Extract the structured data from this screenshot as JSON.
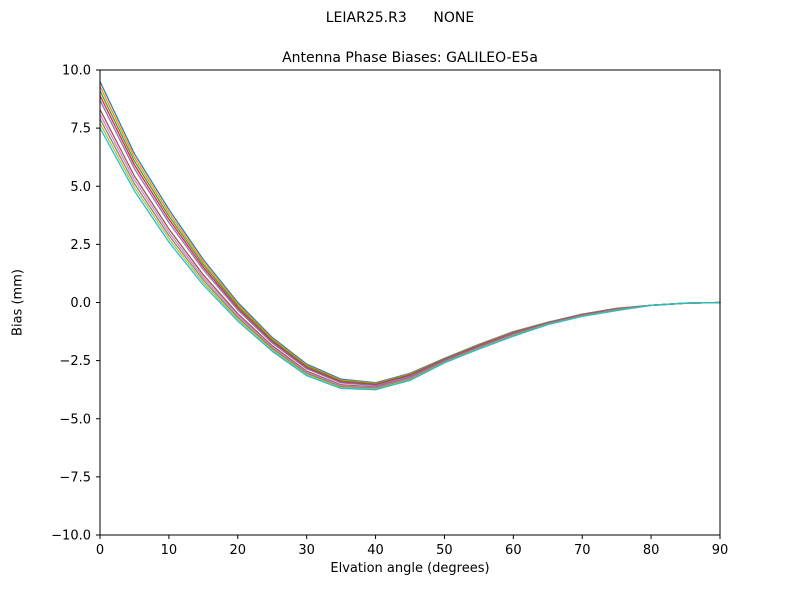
{
  "figure": {
    "suptitle": "LEIAR25.R3      NONE",
    "title": "Antenna Phase Biases: GALILEO-E5a",
    "xlabel": "Elvation angle (degrees)",
    "ylabel": "Bias (mm)",
    "background_color": "#ffffff",
    "axis_color": "#000000"
  },
  "chart_data": {
    "type": "line",
    "suptitle": "LEIAR25.R3      NONE",
    "title": "Antenna Phase Biases: GALILEO-E5a",
    "xlabel": "Elvation angle (degrees)",
    "ylabel": "Bias (mm)",
    "xlim": [
      0,
      90
    ],
    "ylim": [
      -10.0,
      10.0
    ],
    "xticks": [
      0,
      10,
      20,
      30,
      40,
      50,
      60,
      70,
      80,
      90
    ],
    "yticks": [
      -10.0,
      -7.5,
      -5.0,
      -2.5,
      0.0,
      2.5,
      5.0,
      7.5,
      10.0
    ],
    "grid": false,
    "legend": "none",
    "x": [
      0,
      5,
      10,
      15,
      20,
      25,
      30,
      35,
      40,
      45,
      50,
      55,
      60,
      65,
      70,
      75,
      80,
      85,
      90
    ],
    "series": [
      {
        "name": "series-01",
        "color": "#1f77b4",
        "values": [
          9.5,
          6.4,
          4.0,
          1.85,
          0.0,
          -1.5,
          -2.65,
          -3.3,
          -3.45,
          -3.05,
          -2.4,
          -1.8,
          -1.25,
          -0.85,
          -0.5,
          -0.25,
          -0.12,
          -0.03,
          0.0
        ]
      },
      {
        "name": "series-02",
        "color": "#ff7f0e",
        "values": [
          9.3,
          6.24,
          3.86,
          1.74,
          -0.08,
          -1.56,
          -2.7,
          -3.34,
          -3.48,
          -3.08,
          -2.42,
          -1.82,
          -1.27,
          -0.86,
          -0.51,
          -0.26,
          -0.12,
          -0.03,
          0.0
        ]
      },
      {
        "name": "series-03",
        "color": "#2ca02c",
        "values": [
          9.1,
          6.08,
          3.72,
          1.63,
          -0.16,
          -1.62,
          -2.75,
          -3.38,
          -3.51,
          -3.11,
          -2.44,
          -1.84,
          -1.29,
          -0.87,
          -0.52,
          -0.27,
          -0.12,
          -0.03,
          0.0
        ]
      },
      {
        "name": "series-04",
        "color": "#d62728",
        "values": [
          8.9,
          5.92,
          3.58,
          1.52,
          -0.24,
          -1.68,
          -2.8,
          -3.42,
          -3.54,
          -3.14,
          -2.46,
          -1.86,
          -1.31,
          -0.88,
          -0.53,
          -0.28,
          -0.12,
          -0.03,
          0.0
        ]
      },
      {
        "name": "series-05",
        "color": "#9467bd",
        "values": [
          8.7,
          5.76,
          3.44,
          1.41,
          -0.32,
          -1.74,
          -2.85,
          -3.46,
          -3.57,
          -3.17,
          -2.48,
          -1.88,
          -1.33,
          -0.89,
          -0.54,
          -0.29,
          -0.12,
          -0.03,
          0.0
        ]
      },
      {
        "name": "series-06",
        "color": "#8c564b",
        "values": [
          8.3,
          5.44,
          3.16,
          1.19,
          -0.48,
          -1.86,
          -2.95,
          -3.54,
          -3.63,
          -3.23,
          -2.52,
          -1.92,
          -1.37,
          -0.91,
          -0.56,
          -0.31,
          -0.12,
          -0.03,
          0.0
        ]
      },
      {
        "name": "series-07",
        "color": "#e377c2",
        "values": [
          8.1,
          5.28,
          3.02,
          1.08,
          -0.56,
          -1.92,
          -3.0,
          -3.58,
          -3.66,
          -3.26,
          -2.54,
          -1.94,
          -1.39,
          -0.92,
          -0.57,
          -0.32,
          -0.12,
          -0.03,
          0.0
        ]
      },
      {
        "name": "series-08",
        "color": "#7f7f7f",
        "values": [
          7.9,
          5.12,
          2.88,
          0.97,
          -0.64,
          -1.98,
          -3.05,
          -3.62,
          -3.69,
          -3.29,
          -2.56,
          -1.96,
          -1.41,
          -0.93,
          -0.58,
          -0.33,
          -0.12,
          -0.03,
          0.0
        ]
      },
      {
        "name": "series-09",
        "color": "#bcbd22",
        "values": [
          7.7,
          4.96,
          2.74,
          0.86,
          -0.72,
          -2.04,
          -3.1,
          -3.66,
          -3.72,
          -3.32,
          -2.58,
          -1.98,
          -1.43,
          -0.94,
          -0.59,
          -0.34,
          -0.12,
          -0.03,
          0.0
        ]
      },
      {
        "name": "series-10",
        "color": "#17becf",
        "values": [
          7.5,
          4.8,
          2.6,
          0.75,
          -0.8,
          -2.1,
          -3.15,
          -3.7,
          -3.75,
          -3.35,
          -2.6,
          -2.0,
          -1.45,
          -0.95,
          -0.6,
          -0.35,
          -0.12,
          -0.03,
          0.0
        ]
      }
    ]
  }
}
